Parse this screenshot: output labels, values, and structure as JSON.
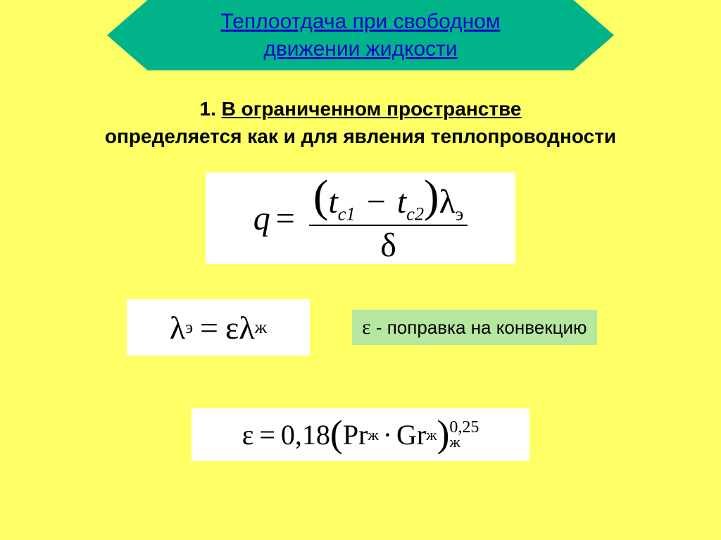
{
  "colors": {
    "background": "#ffff66",
    "header_bg": "#00b388",
    "header_text": "#0000cd",
    "body_text": "#000000",
    "equation_bg": "#ffffff",
    "callout_bg": "#b6e7a0"
  },
  "header": {
    "line1_prefix": "Тепло",
    "line1_rest": "отдача при свободном",
    "line2": "движении жидкости"
  },
  "section": {
    "num": "1.",
    "line1": "В ограниченном пространстве",
    "line2": "определяется как и для явления теплопроводности"
  },
  "equations": {
    "eq1": {
      "lhs": "q",
      "eq": "=",
      "lparen": "(",
      "t1_var": "t",
      "t1_sub": "c1",
      "minus": "−",
      "t2_var": "t",
      "t2_sub": "c2",
      "rparen": ")",
      "lambda": "λ",
      "lambda_sub": "э",
      "den": "δ"
    },
    "eq2": {
      "lambda1": "λ",
      "sub1": "э",
      "eq": "=",
      "eps": "ε",
      "lambda2": "λ",
      "sub2": "ж"
    },
    "eps_note": {
      "symbol": "ε",
      "text": " - поправка на конвекцию"
    },
    "eq3": {
      "eps": "ε",
      "eq": "=",
      "coef": "0,18",
      "lparen": "(",
      "pr": "Pr",
      "pr_sub": "ж",
      "dot": "·",
      "gr": "Gr",
      "gr_sub": "ж",
      "rparen": ")",
      "outer_sub": "ж",
      "exp": "0,25"
    }
  },
  "typography": {
    "header_fontsize": 30,
    "section_fontsize": 28,
    "eq_main_fontsize": 46,
    "callout_fontsize": 26
  }
}
